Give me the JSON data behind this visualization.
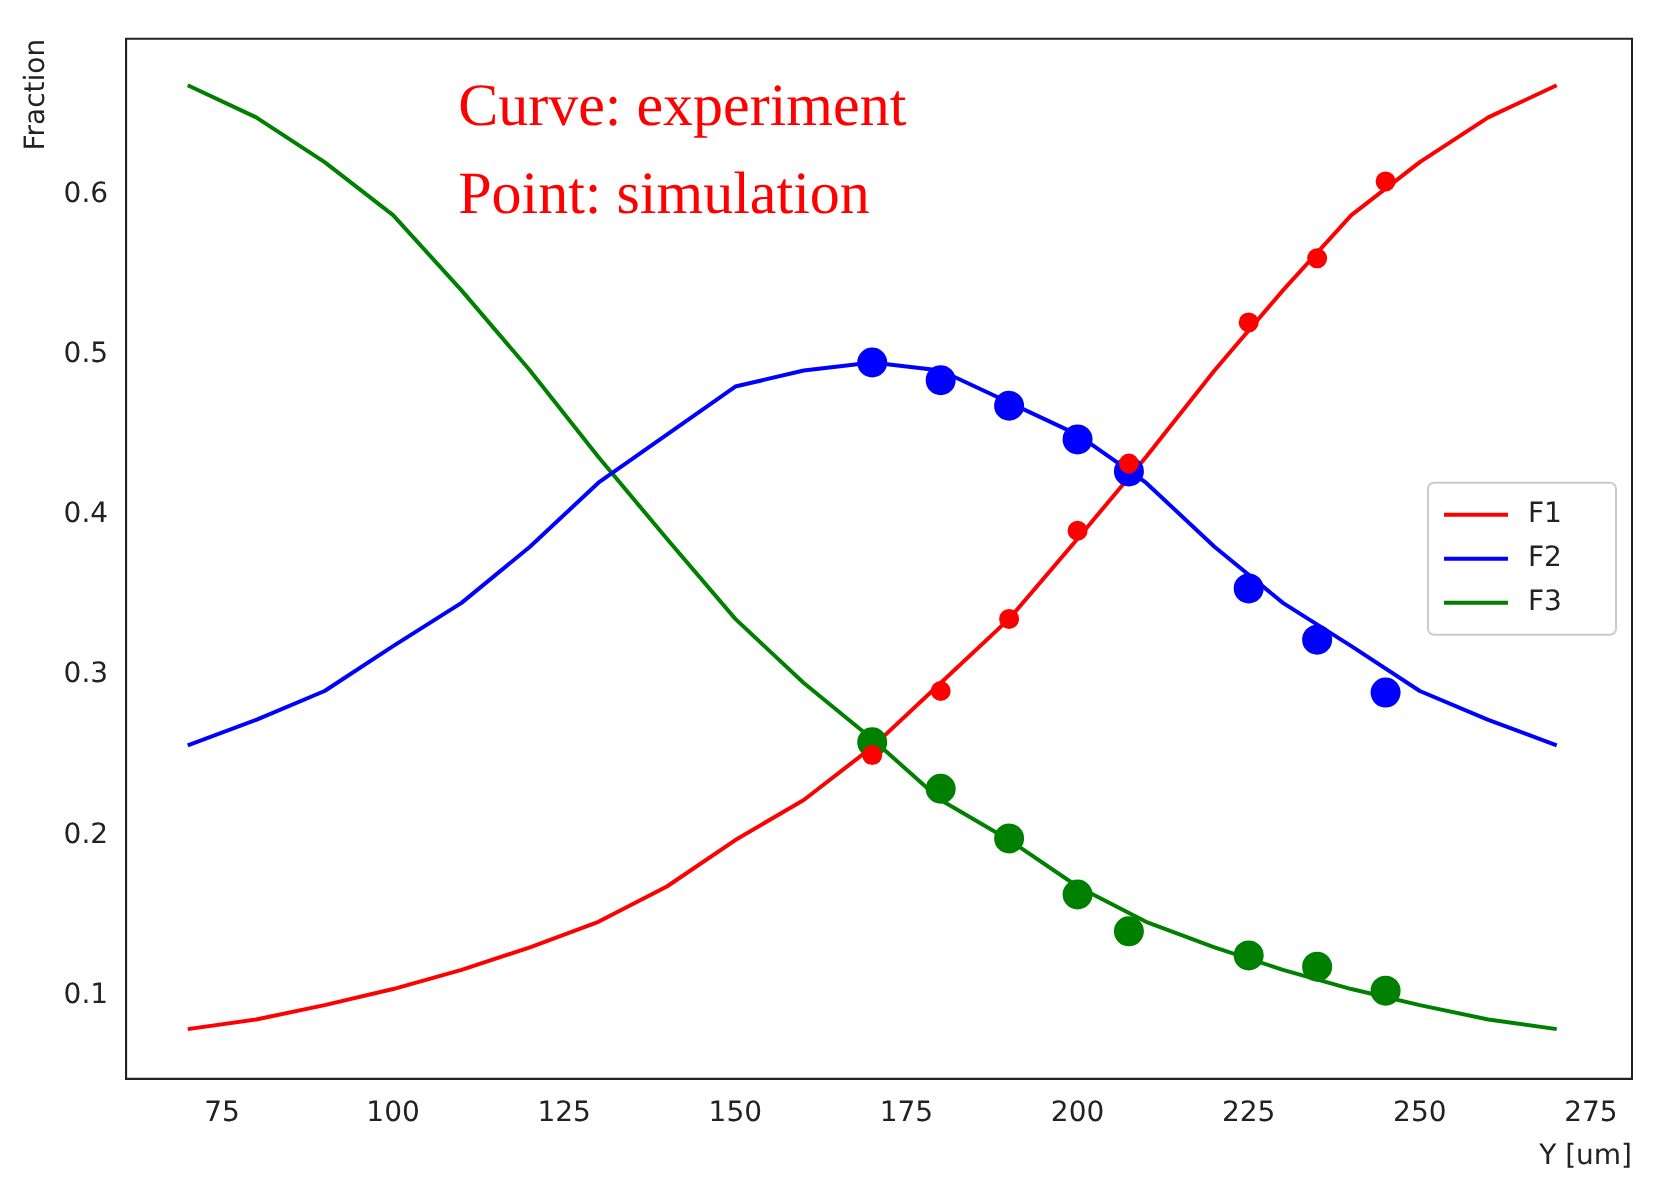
{
  "chart_data": {
    "type": "line",
    "xlabel": "Y [um]",
    "ylabel": "Fraction",
    "annotations": [
      "Curve: experiment",
      "Point: simulation"
    ],
    "xlim": [
      61,
      281
    ],
    "xticks": [
      75,
      100,
      125,
      150,
      175,
      200,
      225,
      250,
      275
    ],
    "ylim": [
      0.048,
      0.697
    ],
    "yticks": [
      0.1,
      0.2,
      0.3,
      0.4,
      0.5,
      0.6
    ],
    "grid": false,
    "legend": "right",
    "marker": "none",
    "line_style": "solid",
    "x": [
      70,
      80,
      90,
      100,
      110,
      120,
      130,
      140,
      150,
      160,
      170,
      180,
      190,
      200,
      210,
      220,
      230,
      240,
      250,
      260,
      270
    ],
    "series": [
      {
        "name": "F1",
        "color": "#ff0000",
        "values": [
          0.079,
          0.085,
          0.094,
          0.104,
          0.116,
          0.13,
          0.146,
          0.168,
          0.197,
          0.222,
          0.255,
          0.295,
          0.335,
          0.385,
          0.436,
          0.49,
          0.54,
          0.587,
          0.62,
          0.648,
          0.668
        ]
      },
      {
        "name": "F2",
        "color": "#0000ff",
        "values": [
          0.256,
          0.272,
          0.29,
          0.318,
          0.345,
          0.38,
          0.42,
          0.45,
          0.48,
          0.49,
          0.495,
          0.49,
          0.47,
          0.45,
          0.42,
          0.38,
          0.345,
          0.318,
          0.29,
          0.272,
          0.256
        ]
      },
      {
        "name": "F3",
        "color": "#008000",
        "values": [
          0.668,
          0.648,
          0.62,
          0.587,
          0.54,
          0.49,
          0.436,
          0.385,
          0.335,
          0.295,
          0.26,
          0.222,
          0.197,
          0.168,
          0.146,
          0.13,
          0.116,
          0.104,
          0.094,
          0.085,
          0.079
        ]
      },
      {
        "type": "scatter",
        "marker": "circle",
        "color": "#ff0000",
        "x": [
          170,
          180,
          190,
          200,
          207.5,
          225,
          235,
          245
        ],
        "values": [
          0.25,
          0.29,
          0.335,
          0.39,
          0.432,
          0.52,
          0.56,
          0.608
        ]
      },
      {
        "type": "scatter",
        "marker": "circle",
        "color": "#0000ff",
        "x": [
          170,
          180,
          190,
          200,
          207.5,
          225,
          235,
          245
        ],
        "values": [
          0.495,
          0.484,
          0.468,
          0.447,
          0.427,
          0.354,
          0.322,
          0.289
        ]
      },
      {
        "type": "scatter",
        "marker": "circle",
        "color": "#008000",
        "x": [
          170,
          180,
          190,
          200,
          207.5,
          225,
          235,
          245
        ],
        "values": [
          0.258,
          0.229,
          0.198,
          0.163,
          0.14,
          0.125,
          0.118,
          0.103
        ]
      }
    ]
  }
}
